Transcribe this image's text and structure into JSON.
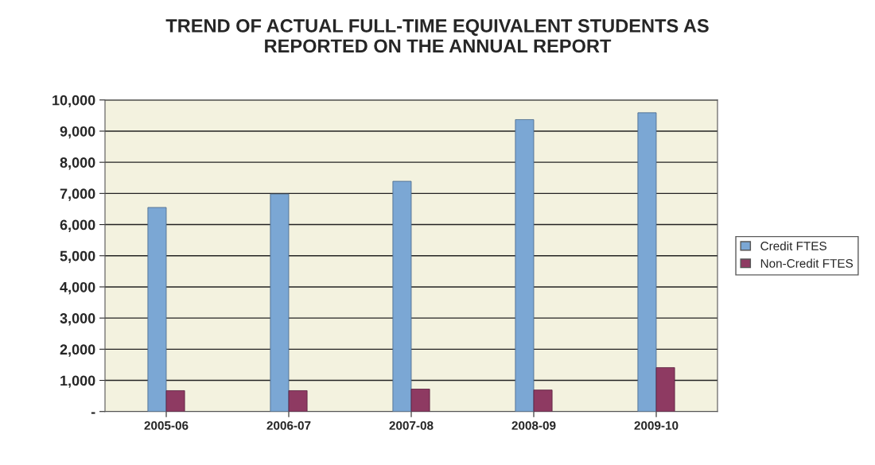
{
  "chart_data": {
    "type": "bar",
    "title": "TREND OF ACTUAL FULL-TIME EQUIVALENT STUDENTS AS\nREPORTED ON THE ANNUAL REPORT",
    "categories": [
      "2005-06",
      "2006-07",
      "2007-08",
      "2008-09",
      "2009-10"
    ],
    "series": [
      {
        "name": "Credit FTES",
        "color": "#7ba7d4",
        "values": [
          6550,
          6980,
          7390,
          9370,
          9590
        ]
      },
      {
        "name": "Non-Credit FTES",
        "color": "#8e3a62",
        "values": [
          670,
          670,
          720,
          690,
          1410
        ]
      }
    ],
    "ylim": [
      0,
      10000
    ],
    "yticks": [
      {
        "value": 0,
        "label": "-"
      },
      {
        "value": 1000,
        "label": "1,000"
      },
      {
        "value": 2000,
        "label": "2,000"
      },
      {
        "value": 3000,
        "label": "3,000"
      },
      {
        "value": 4000,
        "label": "4,000"
      },
      {
        "value": 5000,
        "label": "5,000"
      },
      {
        "value": 6000,
        "label": "6,000"
      },
      {
        "value": 7000,
        "label": "7,000"
      },
      {
        "value": 8000,
        "label": "8,000"
      },
      {
        "value": 9000,
        "label": "9,000"
      },
      {
        "value": 10000,
        "label": "10,000"
      }
    ],
    "grid": "y",
    "legend": "right"
  }
}
